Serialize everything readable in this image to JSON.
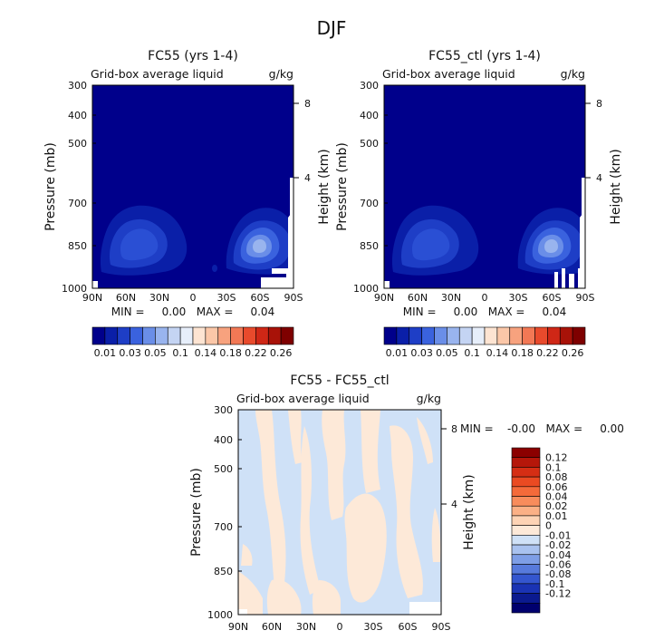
{
  "figure": {
    "title": "DJF"
  },
  "chart_data": [
    {
      "type": "heatmap",
      "id": "fc55",
      "title": "FC55 (yrs 1-4)",
      "subtitle": "Grid-box average liquid",
      "units": "g/kg",
      "xlabel": "",
      "ylabel": "Pressure (mb)",
      "y2label": "Height (km)",
      "x_ticks": [
        "90N",
        "60N",
        "30N",
        "0",
        "30S",
        "60S",
        "90S"
      ],
      "y_ticks": [
        300,
        400,
        500,
        700,
        850,
        1000
      ],
      "y2_ticks": [
        8,
        4
      ],
      "ylim": [
        1000,
        300
      ],
      "stats": "MIN =     0.00   MAX =     0.04",
      "colorbar": {
        "orientation": "horizontal",
        "labels": [
          "0.01",
          "0.03",
          "0.05",
          "0.1",
          "0.14",
          "0.18",
          "0.22",
          "0.26"
        ],
        "colors": [
          "#00008b",
          "#0a1fa8",
          "#1e3ec6",
          "#3a62de",
          "#6a8ee8",
          "#99b4ee",
          "#c4d4f3",
          "#e6eefa",
          "#fde4d2",
          "#fbc7a8",
          "#f7a27e",
          "#f27855",
          "#e84a2c",
          "#cf2716",
          "#a81208",
          "#7e0000"
        ]
      },
      "max_region": {
        "lat_range": [
          "30S",
          "90S"
        ],
        "pressure_range": [
          700,
          950
        ],
        "peak": "0.04 near 55S, 850 mb"
      }
    },
    {
      "type": "heatmap",
      "id": "fc55_ctl",
      "title": "FC55_ctl (yrs 1-4)",
      "subtitle": "Grid-box average liquid",
      "units": "g/kg",
      "xlabel": "",
      "ylabel": "Pressure (mb)",
      "y2label": "Height (km)",
      "x_ticks": [
        "90N",
        "60N",
        "30N",
        "0",
        "30S",
        "60S",
        "90S"
      ],
      "y_ticks": [
        300,
        400,
        500,
        700,
        850,
        1000
      ],
      "y2_ticks": [
        8,
        4
      ],
      "ylim": [
        1000,
        300
      ],
      "stats": "MIN =     0.00   MAX =     0.04",
      "colorbar": {
        "orientation": "horizontal",
        "labels": [
          "0.01",
          "0.03",
          "0.05",
          "0.1",
          "0.14",
          "0.18",
          "0.22",
          "0.26"
        ],
        "colors": [
          "#00008b",
          "#0a1fa8",
          "#1e3ec6",
          "#3a62de",
          "#6a8ee8",
          "#99b4ee",
          "#c4d4f3",
          "#e6eefa",
          "#fde4d2",
          "#fbc7a8",
          "#f7a27e",
          "#f27855",
          "#e84a2c",
          "#cf2716",
          "#a81208",
          "#7e0000"
        ]
      }
    },
    {
      "type": "heatmap",
      "id": "diff",
      "title": "FC55 - FC55_ctl",
      "subtitle": "Grid-box average liquid",
      "units": "g/kg",
      "xlabel": "",
      "ylabel": "Pressure (mb)",
      "y2label": "Height (km)",
      "x_ticks": [
        "90N",
        "60N",
        "30N",
        "0",
        "30S",
        "60S",
        "90S"
      ],
      "y_ticks": [
        300,
        400,
        500,
        700,
        850,
        1000
      ],
      "y2_ticks": [
        8,
        4
      ],
      "ylim": [
        1000,
        300
      ],
      "stats": "MIN =    -0.00   MAX =     0.00",
      "colorbar": {
        "orientation": "vertical",
        "labels": [
          "0.12",
          "0.1",
          "0.08",
          "0.06",
          "0.04",
          "0.02",
          "0.01",
          "0",
          "-0.01",
          "-0.02",
          "-0.04",
          "-0.06",
          "-0.08",
          "-0.1",
          "-0.12"
        ],
        "colors": [
          "#8b0000",
          "#b5170a",
          "#d52e14",
          "#ea4a22",
          "#f46a3a",
          "#f88c5c",
          "#fbb086",
          "#fdd3b5",
          "#fde9d8",
          "#cfe1f7",
          "#a9c2ef",
          "#7e9ee6",
          "#577adc",
          "#3456cf",
          "#1a33b4",
          "#0b1a8f",
          "#00006e"
        ]
      }
    }
  ]
}
